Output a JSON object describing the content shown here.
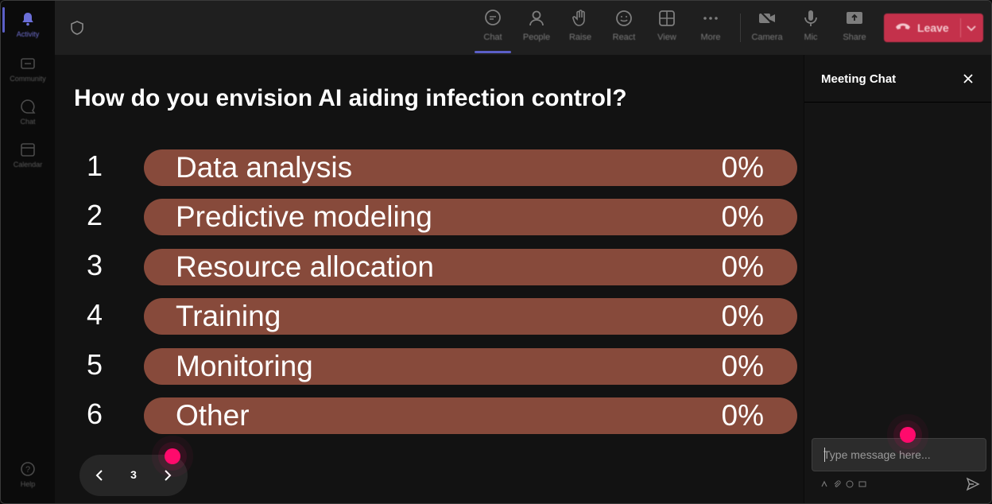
{
  "rail": {
    "items": [
      {
        "label": "Activity",
        "icon": "bell-icon",
        "active": true
      },
      {
        "label": "Community",
        "icon": "community-icon"
      },
      {
        "label": "Chat",
        "icon": "chat-icon"
      },
      {
        "label": "Calendar",
        "icon": "calendar-icon"
      }
    ],
    "help": {
      "label": "Help",
      "icon": "help-icon"
    }
  },
  "topbar": {
    "buttons": [
      {
        "label": "Chat",
        "icon": "chat-icon",
        "active": true
      },
      {
        "label": "People",
        "icon": "people-icon"
      },
      {
        "label": "Raise",
        "icon": "raise-hand-icon"
      },
      {
        "label": "React",
        "icon": "react-icon"
      },
      {
        "label": "View",
        "icon": "view-grid-icon"
      },
      {
        "label": "More",
        "icon": "more-icon"
      },
      {
        "label": "Camera",
        "icon": "camera-off-icon"
      },
      {
        "label": "Mic",
        "icon": "mic-icon"
      },
      {
        "label": "Share",
        "icon": "share-icon"
      }
    ],
    "leave_label": "Leave",
    "leave_color": "#c4314b"
  },
  "poll": {
    "question": "How do you envision AI aiding infection control?",
    "bar_color": "#874a3b",
    "options": [
      {
        "num": "1",
        "label": "Data analysis",
        "pct": "0%"
      },
      {
        "num": "2",
        "label": "Predictive modeling",
        "pct": "0%"
      },
      {
        "num": "3",
        "label": "Resource allocation",
        "pct": "0%"
      },
      {
        "num": "4",
        "label": "Training",
        "pct": "0%"
      },
      {
        "num": "5",
        "label": "Monitoring",
        "pct": "0%"
      },
      {
        "num": "6",
        "label": "Other",
        "pct": "0%"
      }
    ]
  },
  "pager": {
    "page": "3"
  },
  "chat": {
    "title": "Meeting Chat",
    "input_placeholder": "Type message here..."
  }
}
